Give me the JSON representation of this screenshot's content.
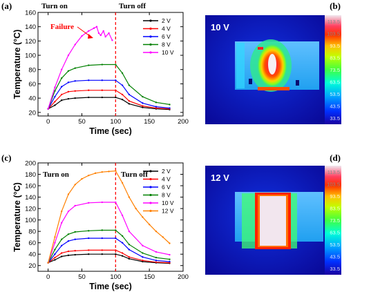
{
  "chart_data": [
    {
      "type": "line",
      "panel": "(a)",
      "annotations": [
        "Turn on",
        "Turn off"
      ],
      "failure_label": "Failure",
      "xlabel": "Time (sec)",
      "ylabel": "Temperature (°C)",
      "xlim": [
        -15,
        200
      ],
      "ylim": [
        15,
        160
      ],
      "xticks": [
        0,
        50,
        100,
        150,
        200
      ],
      "yticks": [
        20,
        40,
        60,
        80,
        100,
        120,
        140,
        160
      ],
      "turn_off_time": 100,
      "legend_position": "top-right",
      "series": [
        {
          "name": "2 V",
          "color": "#000000",
          "x": [
            0,
            10,
            20,
            30,
            40,
            60,
            80,
            100,
            110,
            120,
            140,
            160,
            180
          ],
          "y": [
            25,
            30,
            37,
            39,
            40,
            41,
            41,
            41,
            38,
            32,
            27,
            25,
            24
          ]
        },
        {
          "name": "4 V",
          "color": "#ff0000",
          "x": [
            0,
            10,
            20,
            30,
            40,
            60,
            80,
            100,
            110,
            120,
            140,
            160,
            180
          ],
          "y": [
            25,
            35,
            45,
            49,
            50,
            51,
            51,
            51,
            45,
            36,
            29,
            26,
            25
          ]
        },
        {
          "name": "6 V",
          "color": "#0000ff",
          "x": [
            0,
            10,
            20,
            30,
            40,
            60,
            80,
            100,
            110,
            120,
            140,
            160,
            180
          ],
          "y": [
            25,
            42,
            56,
            62,
            64,
            65,
            65,
            65,
            58,
            45,
            33,
            28,
            26
          ]
        },
        {
          "name": "8 V",
          "color": "#008000",
          "x": [
            0,
            10,
            20,
            30,
            40,
            60,
            80,
            100,
            110,
            120,
            140,
            160,
            180
          ],
          "y": [
            25,
            50,
            68,
            78,
            82,
            86,
            87,
            87,
            75,
            58,
            42,
            34,
            31
          ]
        },
        {
          "name": "10 V",
          "color": "#ff00ff",
          "x": [
            0,
            10,
            20,
            30,
            40,
            50,
            60,
            68,
            72,
            75,
            78,
            82,
            85,
            90,
            95
          ],
          "y": [
            25,
            55,
            80,
            100,
            115,
            127,
            134,
            138,
            140,
            131,
            128,
            134,
            126,
            131,
            121
          ]
        }
      ]
    },
    {
      "type": "line",
      "panel": "(c)",
      "annotations": [
        "Turn on",
        "Turn off"
      ],
      "xlabel": "Time (sec)",
      "ylabel": "Temperature (°C)",
      "xlim": [
        -15,
        200
      ],
      "ylim": [
        10,
        200
      ],
      "xticks": [
        0,
        50,
        100,
        150,
        200
      ],
      "yticks": [
        20,
        40,
        60,
        80,
        100,
        120,
        140,
        160,
        180,
        200
      ],
      "turn_off_time": 100,
      "legend_position": "top-right",
      "series": [
        {
          "name": "2 V",
          "color": "#000000",
          "x": [
            0,
            10,
            20,
            30,
            40,
            60,
            80,
            100,
            110,
            120,
            140,
            160,
            180
          ],
          "y": [
            25,
            30,
            36,
            38,
            39,
            40,
            40,
            40,
            37,
            32,
            27,
            25,
            24
          ]
        },
        {
          "name": "4 V",
          "color": "#ff0000",
          "x": [
            0,
            10,
            20,
            30,
            40,
            60,
            80,
            100,
            110,
            120,
            140,
            160,
            180
          ],
          "y": [
            25,
            34,
            42,
            45,
            46,
            47,
            47,
            47,
            42,
            35,
            29,
            26,
            25
          ]
        },
        {
          "name": "6 V",
          "color": "#0000ff",
          "x": [
            0,
            10,
            20,
            30,
            40,
            60,
            80,
            100,
            110,
            120,
            140,
            160,
            180
          ],
          "y": [
            25,
            40,
            55,
            63,
            66,
            68,
            68,
            68,
            60,
            48,
            35,
            29,
            27
          ]
        },
        {
          "name": "8 V",
          "color": "#008000",
          "x": [
            0,
            10,
            20,
            30,
            40,
            60,
            80,
            100,
            110,
            120,
            140,
            160,
            180
          ],
          "y": [
            25,
            48,
            66,
            75,
            79,
            81,
            82,
            82,
            72,
            57,
            42,
            34,
            31
          ]
        },
        {
          "name": "10 V",
          "color": "#ff00ff",
          "x": [
            0,
            10,
            20,
            30,
            40,
            60,
            80,
            100,
            110,
            120,
            140,
            160,
            180
          ],
          "y": [
            25,
            60,
            95,
            115,
            125,
            130,
            131,
            131,
            108,
            80,
            55,
            44,
            39
          ]
        },
        {
          "name": "12 V",
          "color": "#ff8000",
          "x": [
            0,
            10,
            20,
            30,
            40,
            50,
            60,
            70,
            80,
            90,
            100,
            110,
            120,
            130,
            140,
            150,
            160,
            170,
            180
          ],
          "y": [
            25,
            70,
            115,
            145,
            162,
            172,
            178,
            182,
            184,
            185,
            186,
            165,
            140,
            120,
            105,
            92,
            80,
            70,
            59
          ]
        }
      ]
    }
  ],
  "thermal_images": [
    {
      "panel": "(b)",
      "voltage_label": "10 V",
      "colorbar_ticks": [
        "113.5",
        "103.5",
        "93.5",
        "83.5",
        "73.5",
        "63.5",
        "53.5",
        "43.5",
        "33.5"
      ]
    },
    {
      "panel": "(d)",
      "voltage_label": "12 V",
      "colorbar_ticks": [
        "113.5",
        "103.5",
        "93.5",
        "83.5",
        "73.5",
        "63.5",
        "53.5",
        "43.5",
        "33.5"
      ]
    }
  ]
}
